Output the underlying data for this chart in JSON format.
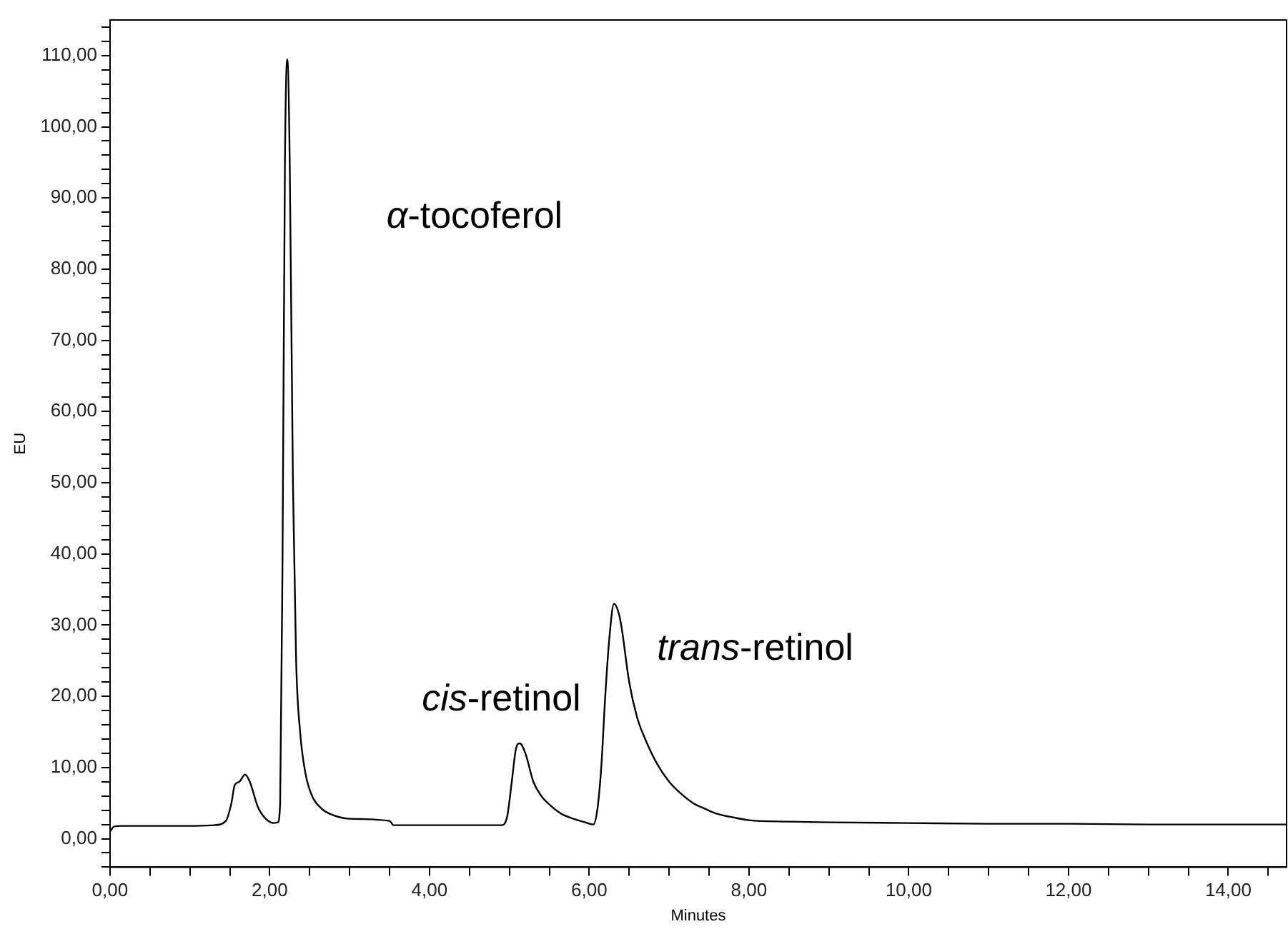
{
  "chart_data": {
    "type": "line",
    "xlabel": "Minutes",
    "ylabel": "EU",
    "color": "#000000",
    "marker": "none",
    "line_style": "solid",
    "x": [
      0,
      0.05,
      0.15,
      0.5,
      1.0,
      1.3,
      1.45,
      1.52,
      1.56,
      1.62,
      1.69,
      1.75,
      1.85,
      1.95,
      2.05,
      2.1,
      2.13,
      2.16,
      2.19,
      2.22,
      2.25,
      2.29,
      2.33,
      2.38,
      2.45,
      2.53,
      2.65,
      2.75,
      3.0,
      3.5,
      3.55,
      3.6,
      4.0,
      4.5,
      4.9,
      4.97,
      5.03,
      5.08,
      5.13,
      5.2,
      5.3,
      5.4,
      5.5,
      5.65,
      5.8,
      5.95,
      6.05,
      6.1,
      6.15,
      6.2,
      6.25,
      6.31,
      6.36,
      6.4,
      6.5,
      6.6,
      6.7,
      6.85,
      7.0,
      7.15,
      7.3,
      7.45,
      7.6,
      7.8,
      8.0,
      8.5,
      9.0,
      10.0,
      11.0,
      12.0,
      13.0,
      14.0,
      14.73
    ],
    "values": [
      1.0,
      1.7,
      1.8,
      1.8,
      1.8,
      1.9,
      2.5,
      5.0,
      7.5,
      8.0,
      9.0,
      8.0,
      4.5,
      2.8,
      2.2,
      2.3,
      5.0,
      40.0,
      95.0,
      109.5,
      95.0,
      50.0,
      25.0,
      15.0,
      9.0,
      6.0,
      4.2,
      3.5,
      2.8,
      2.5,
      1.9,
      1.9,
      1.9,
      1.9,
      1.9,
      3.0,
      8.0,
      12.5,
      13.4,
      12.0,
      8.0,
      6.0,
      4.8,
      3.5,
      2.8,
      2.3,
      2.0,
      4.0,
      10.0,
      20.0,
      28.0,
      33.0,
      32.0,
      30.0,
      22.0,
      17.0,
      14.0,
      10.5,
      8.0,
      6.3,
      5.0,
      4.2,
      3.5,
      3.0,
      2.6,
      2.4,
      2.3,
      2.2,
      2.1,
      2.1,
      2.0,
      2.0,
      2.0
    ],
    "xlim": [
      0,
      14.73
    ],
    "ylim": [
      -4,
      115
    ],
    "xticks": [
      {
        "value": 0,
        "label": "0,00"
      },
      {
        "value": 0.5,
        "label": null
      },
      {
        "value": 1,
        "label": null
      },
      {
        "value": 1.5,
        "label": null
      },
      {
        "value": 2,
        "label": "2,00"
      },
      {
        "value": 2.5,
        "label": null
      },
      {
        "value": 3,
        "label": null
      },
      {
        "value": 3.5,
        "label": null
      },
      {
        "value": 4,
        "label": "4,00"
      },
      {
        "value": 4.5,
        "label": null
      },
      {
        "value": 5,
        "label": null
      },
      {
        "value": 5.5,
        "label": null
      },
      {
        "value": 6,
        "label": "6,00"
      },
      {
        "value": 6.5,
        "label": null
      },
      {
        "value": 7,
        "label": null
      },
      {
        "value": 7.5,
        "label": null
      },
      {
        "value": 8,
        "label": "8,00"
      },
      {
        "value": 8.5,
        "label": null
      },
      {
        "value": 9,
        "label": null
      },
      {
        "value": 9.5,
        "label": null
      },
      {
        "value": 10,
        "label": "10,00"
      },
      {
        "value": 10.5,
        "label": null
      },
      {
        "value": 11,
        "label": null
      },
      {
        "value": 11.5,
        "label": null
      },
      {
        "value": 12,
        "label": "12,00"
      },
      {
        "value": 12.5,
        "label": null
      },
      {
        "value": 13,
        "label": null
      },
      {
        "value": 13.5,
        "label": null
      },
      {
        "value": 14,
        "label": "14,00"
      },
      {
        "value": 14.5,
        "label": null
      }
    ],
    "yticks": [
      {
        "value": -4,
        "label": null
      },
      {
        "value": -2,
        "label": null
      },
      {
        "value": 0,
        "label": "0,00"
      },
      {
        "value": 2,
        "label": null
      },
      {
        "value": 4,
        "label": null
      },
      {
        "value": 6,
        "label": null
      },
      {
        "value": 8,
        "label": null
      },
      {
        "value": 10,
        "label": "10,00"
      },
      {
        "value": 12,
        "label": null
      },
      {
        "value": 14,
        "label": null
      },
      {
        "value": 16,
        "label": null
      },
      {
        "value": 18,
        "label": null
      },
      {
        "value": 20,
        "label": "20,00"
      },
      {
        "value": 22,
        "label": null
      },
      {
        "value": 24,
        "label": null
      },
      {
        "value": 26,
        "label": null
      },
      {
        "value": 28,
        "label": null
      },
      {
        "value": 30,
        "label": "30,00"
      },
      {
        "value": 32,
        "label": null
      },
      {
        "value": 34,
        "label": null
      },
      {
        "value": 36,
        "label": null
      },
      {
        "value": 38,
        "label": null
      },
      {
        "value": 40,
        "label": "40,00"
      },
      {
        "value": 42,
        "label": null
      },
      {
        "value": 44,
        "label": null
      },
      {
        "value": 46,
        "label": null
      },
      {
        "value": 48,
        "label": null
      },
      {
        "value": 50,
        "label": "50,00"
      },
      {
        "value": 52,
        "label": null
      },
      {
        "value": 54,
        "label": null
      },
      {
        "value": 56,
        "label": null
      },
      {
        "value": 58,
        "label": null
      },
      {
        "value": 60,
        "label": "60,00"
      },
      {
        "value": 62,
        "label": null
      },
      {
        "value": 64,
        "label": null
      },
      {
        "value": 66,
        "label": null
      },
      {
        "value": 68,
        "label": null
      },
      {
        "value": 70,
        "label": "70,00"
      },
      {
        "value": 72,
        "label": null
      },
      {
        "value": 74,
        "label": null
      },
      {
        "value": 76,
        "label": null
      },
      {
        "value": 78,
        "label": null
      },
      {
        "value": 80,
        "label": "80,00"
      },
      {
        "value": 82,
        "label": null
      },
      {
        "value": 84,
        "label": null
      },
      {
        "value": 86,
        "label": null
      },
      {
        "value": 88,
        "label": null
      },
      {
        "value": 90,
        "label": "90,00"
      },
      {
        "value": 92,
        "label": null
      },
      {
        "value": 94,
        "label": null
      },
      {
        "value": 96,
        "label": null
      },
      {
        "value": 98,
        "label": null
      },
      {
        "value": 100,
        "label": "100,00"
      },
      {
        "value": 102,
        "label": null
      },
      {
        "value": 104,
        "label": null
      },
      {
        "value": 106,
        "label": null
      },
      {
        "value": 108,
        "label": null
      },
      {
        "value": 110,
        "label": "110,00"
      },
      {
        "value": 112,
        "label": null
      },
      {
        "value": 114,
        "label": null
      }
    ],
    "annotations": [
      "α-tocoferol",
      "cis-retinol",
      "trans-retinol"
    ]
  }
}
